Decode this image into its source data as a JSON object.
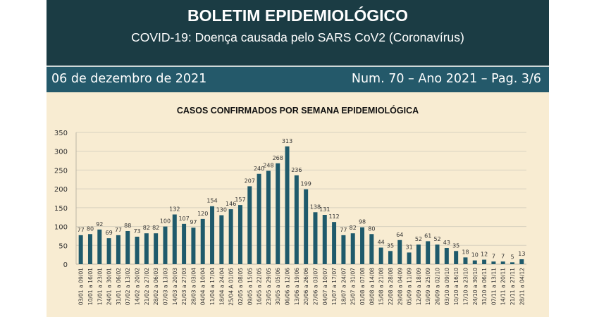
{
  "header": {
    "title": "BOLETIM EPIDEMIOLÓGICO",
    "subtitle": "COVID-19: Doença  causada pelo SARS CoV2 (Coronavírus)"
  },
  "infobar": {
    "date": "06 de dezembro de 2021",
    "issue": "Num. 70 – Ano 2021 – Pag. 3/6"
  },
  "colors": {
    "header_bg": "#1b3c44",
    "infobar_bg": "#24596a",
    "bar": "#1f5a6b",
    "paper": "#f8ecd2"
  },
  "chart_data": {
    "type": "bar",
    "title": "CASOS CONFIRMADOS POR SEMANA EPIDEMIOLÓGICA",
    "xlabel": "",
    "ylabel": "",
    "ylim": [
      0,
      350
    ],
    "yticks": [
      0,
      50,
      100,
      150,
      200,
      250,
      300,
      350
    ],
    "grid": true,
    "categories": [
      "03/01 a 09/01",
      "10/01 a 16/01",
      "17/01 a 23/01",
      "24/01 a 30/01",
      "31/01 a 06/02",
      "07/02 a 13/02",
      "14/02 a 20/02",
      "21/02 a 27/02",
      "28/02 a 06/03",
      "07/03 a 13/03",
      "14/03 a 20/03",
      "21/03 a 27/03",
      "28/03 a 03/04",
      "04/04 a 10/04",
      "11/04 a 17/04",
      "18/04 a 24/04",
      "25/04 A 01/05",
      "02/05 a 08/05",
      "09/05 a 15/05",
      "16/05 a 22/05",
      "23/05 a 29/05",
      "30/05 a 05/06",
      "06/06 a 12/06",
      "13/06 a 19/06",
      "20/06 a 26/06",
      "27/06 a 03/07",
      "04/07 a 10/07",
      "11/07 a 17/07",
      "18/07 a 24/07",
      "25/07 a 31/07",
      "01/08 a 07/08",
      "08/08 a 14/08",
      "15/08 a 21/08",
      "22/08 a 28/08",
      "29/08 a 04/09",
      "05/09 a 11/09",
      "12/09 a 18/09",
      "19/09 a 25/09",
      "26/09 a 02/10",
      "03/10 a 09/10",
      "10/10 a 16/10",
      "17/10 a 23/10",
      "24/10 a 30/10",
      "31/10 a 06/11",
      "07/11 a 13/11",
      "14/11 a 20/11",
      "21/11 a 27/11",
      "28/11 a 04/12"
    ],
    "values": [
      77,
      80,
      92,
      69,
      77,
      88,
      73,
      82,
      82,
      100,
      132,
      107,
      97,
      120,
      154,
      130,
      146,
      157,
      207,
      240,
      248,
      268,
      313,
      236,
      199,
      138,
      131,
      112,
      77,
      82,
      98,
      80,
      44,
      35,
      64,
      31,
      52,
      61,
      52,
      43,
      35,
      18,
      10,
      12,
      7,
      7,
      5,
      13
    ]
  }
}
